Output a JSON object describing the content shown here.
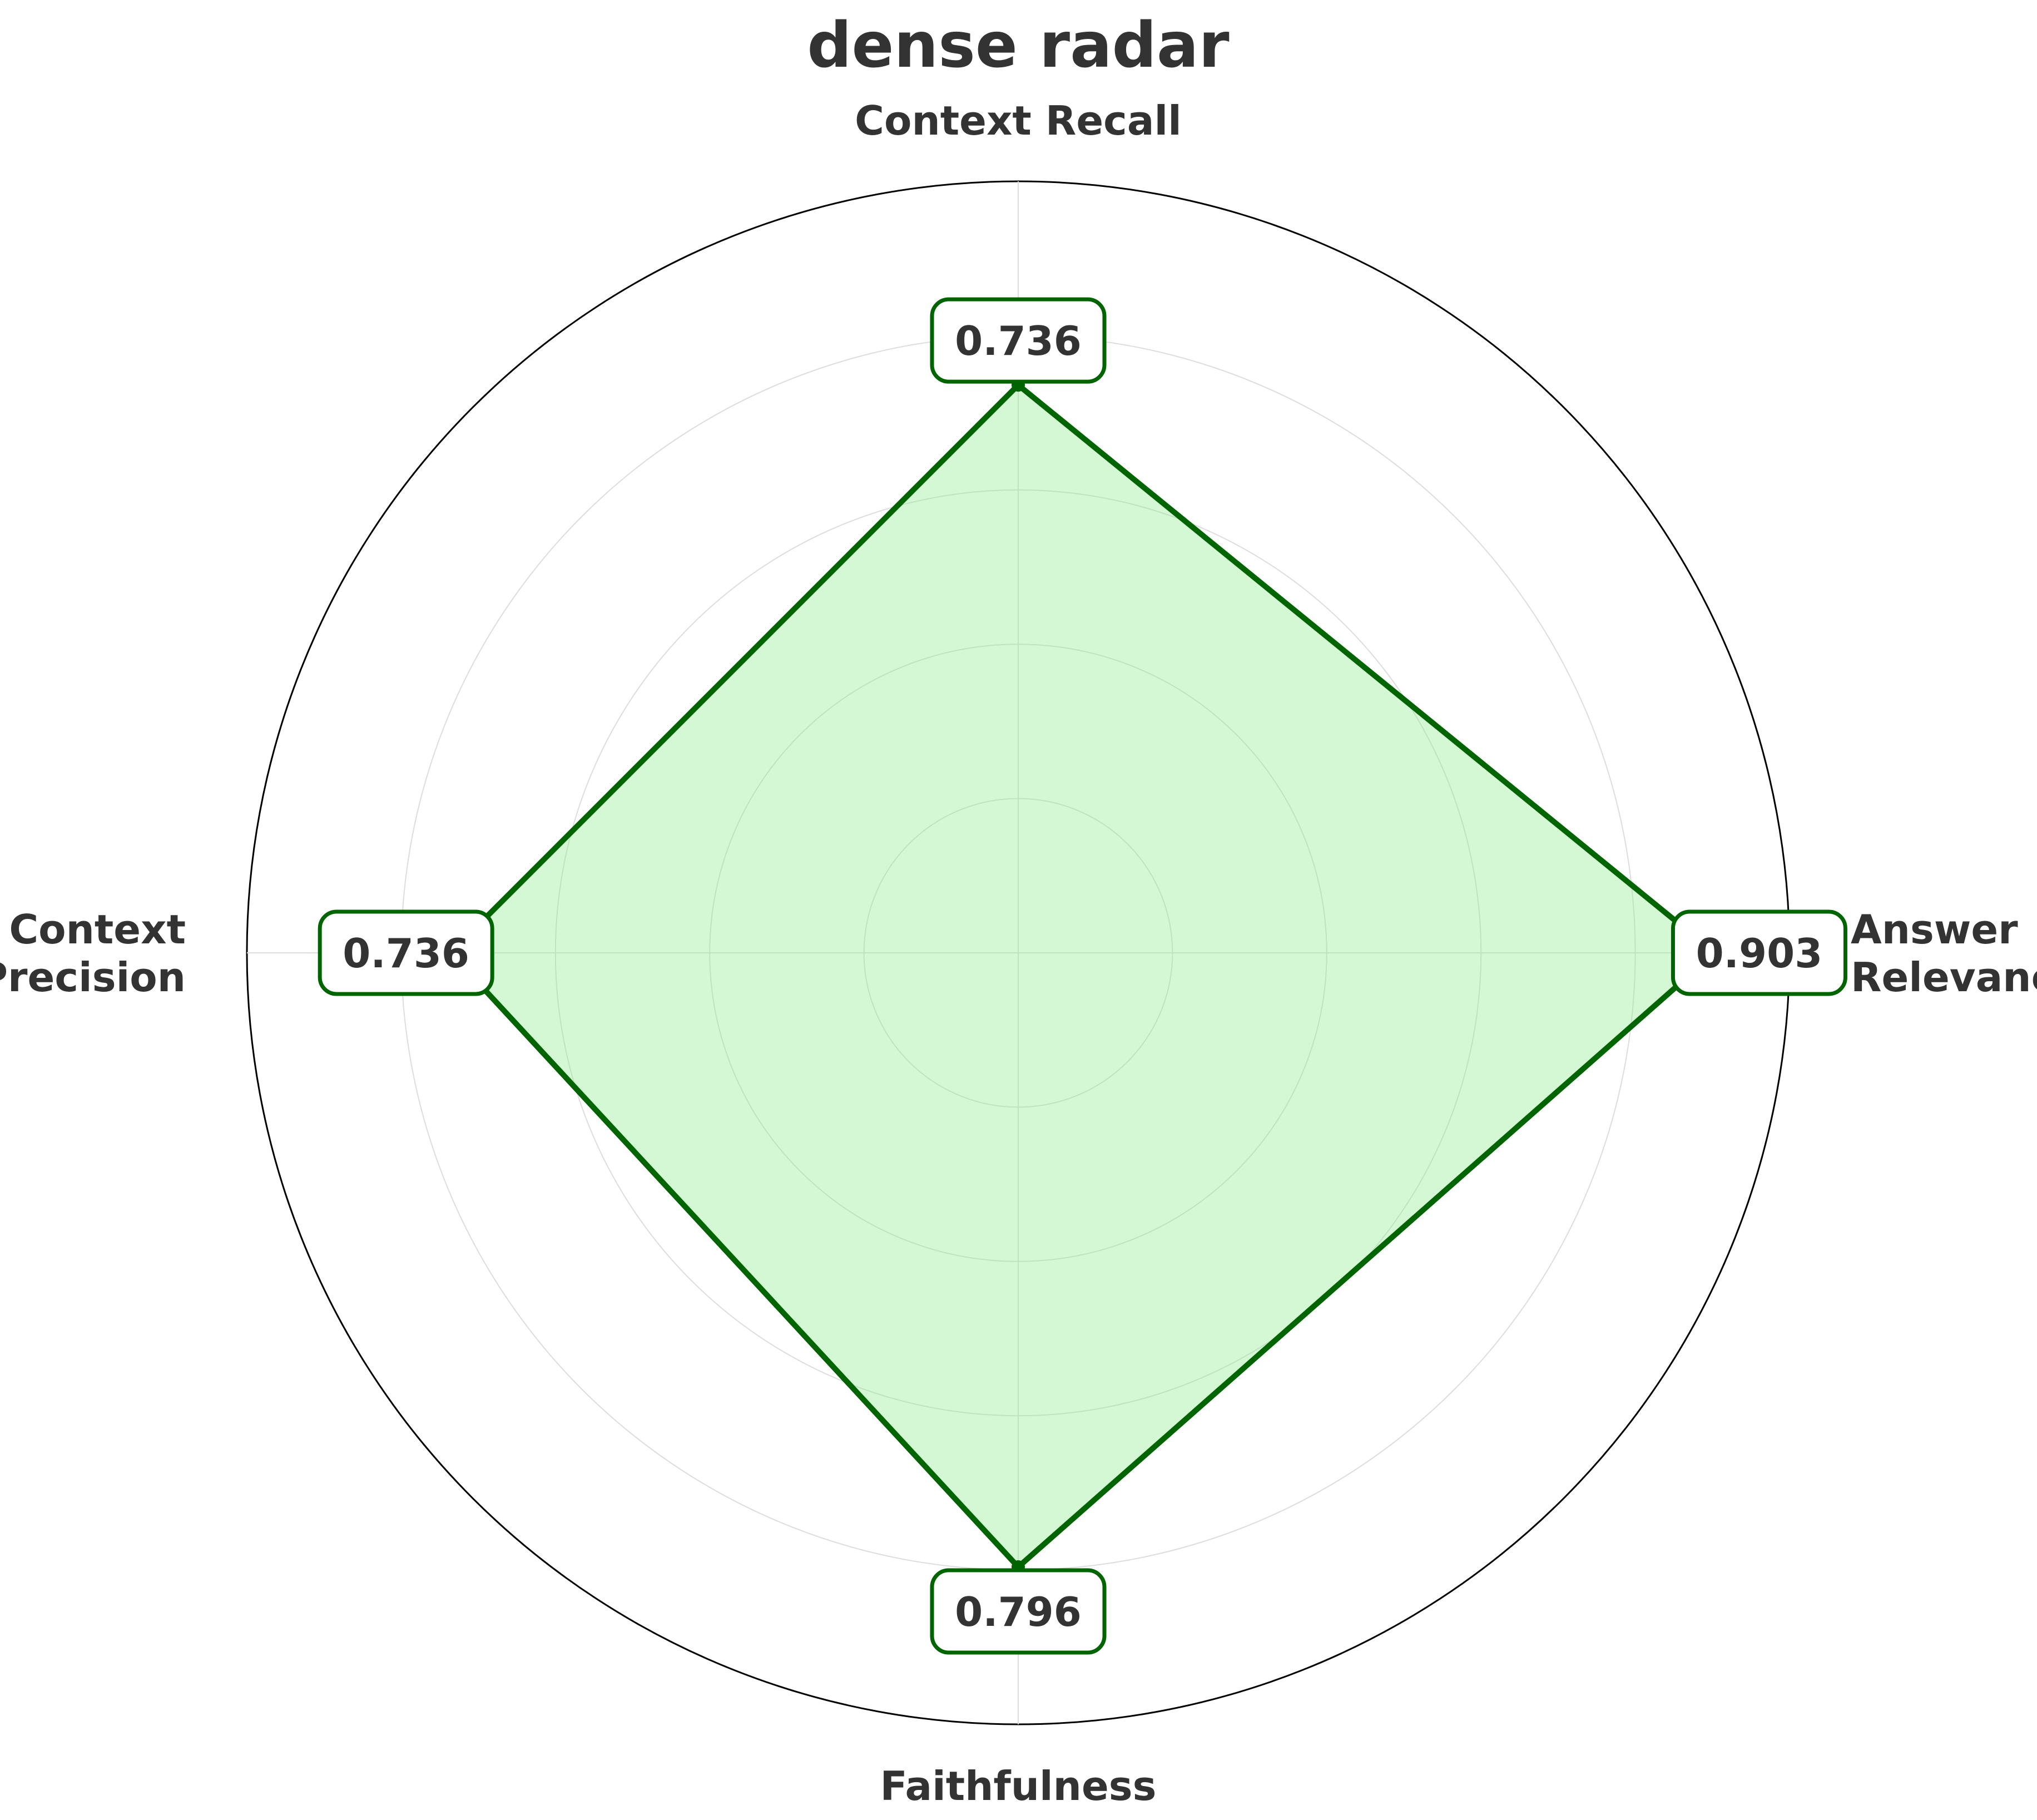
{
  "chart_data": {
    "type": "radar",
    "title": "dense radar",
    "axes": [
      "Context Recall",
      "Answer\nRelevancy",
      "Faithfulness",
      "Context\nPrecision"
    ],
    "series": [
      {
        "values": [
          0.736,
          0.903,
          0.796,
          0.736
        ]
      }
    ],
    "value_labels": [
      "0.736",
      "0.903",
      "0.796",
      "0.736"
    ],
    "rlim": [
      0,
      1.0
    ],
    "rticks": [
      0.2,
      0.4,
      0.6,
      0.8,
      1.0
    ],
    "grid": true,
    "colors": {
      "line": "#006400",
      "fill": "#90EE90",
      "grid": "#dddddd",
      "outer": "#000000",
      "text": "#333333"
    }
  }
}
